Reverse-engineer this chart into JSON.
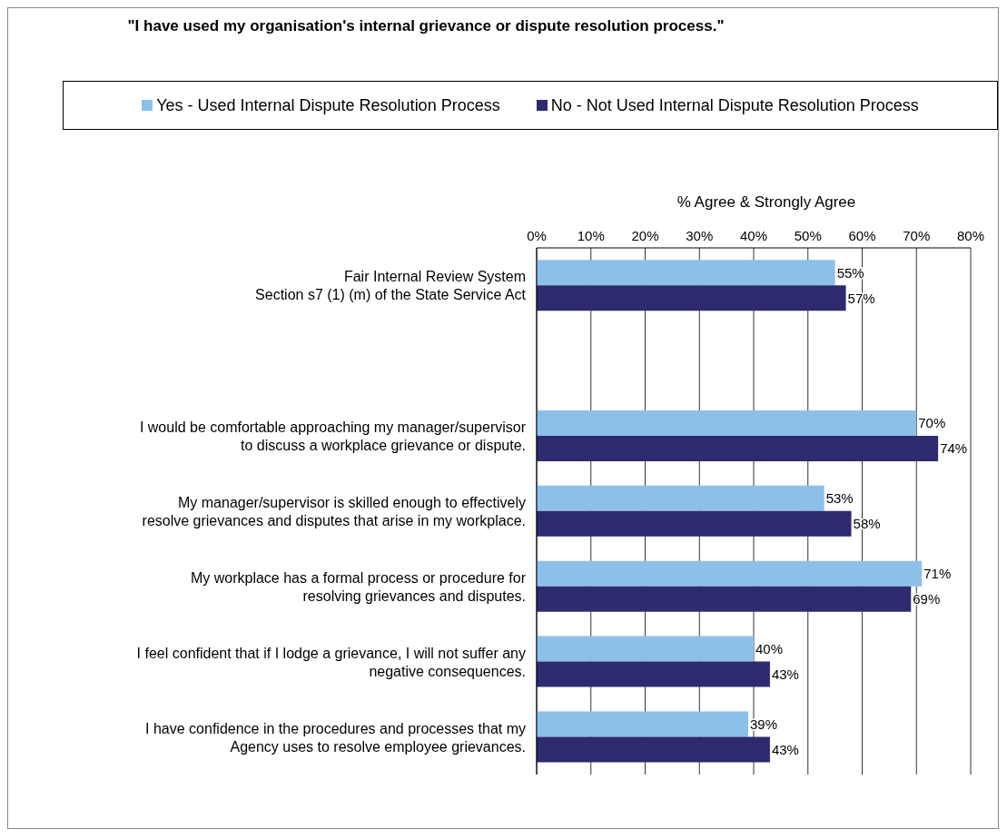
{
  "chart_data": {
    "type": "bar",
    "orientation": "horizontal",
    "title": "\"I have used my organisation's internal grievance or dispute resolution process.\"",
    "xlabel": "% Agree & Strongly Agree",
    "categories": [
      "Fair Internal Review System\nSection s7 (1) (m) of the State Service Act",
      null,
      "I would be comfortable approaching my manager/supervisor\nto discuss a workplace grievance or dispute.",
      "My manager/supervisor is skilled enough to effectively\nresolve grievances and disputes that arise in my workplace.",
      "My workplace has a formal process or procedure for\nresolving grievances and disputes.",
      "I feel confident that if I lodge a grievance, I will not suffer any\nnegative consequences.",
      "I have confidence in the procedures and processes that my\nAgency uses to resolve employee grievances."
    ],
    "series": [
      {
        "name": "Yes - Used Internal Dispute Resolution Process",
        "color": "#8dc0e8",
        "values": [
          55,
          null,
          70,
          53,
          71,
          40,
          39
        ],
        "value_labels": [
          "55%",
          null,
          "70%",
          "53%",
          "71%",
          "40%",
          "39%"
        ]
      },
      {
        "name": "No - Not Used Internal Dispute Resolution Process",
        "color": "#2e2a6e",
        "values": [
          57,
          null,
          74,
          58,
          69,
          43,
          43
        ],
        "value_labels": [
          "57%",
          null,
          "74%",
          "58%",
          "69%",
          "43%",
          "43%"
        ]
      }
    ],
    "xlim": [
      0,
      80
    ],
    "xticks": [
      {
        "value": 0,
        "label": "0%"
      },
      {
        "value": 10,
        "label": "10%"
      },
      {
        "value": 20,
        "label": "20%"
      },
      {
        "value": 30,
        "label": "30%"
      },
      {
        "value": 40,
        "label": "40%"
      },
      {
        "value": 50,
        "label": "50%"
      },
      {
        "value": 60,
        "label": "60%"
      },
      {
        "value": 70,
        "label": "70%"
      },
      {
        "value": 80,
        "label": "80%"
      }
    ],
    "grid": "x",
    "legend": "top"
  }
}
